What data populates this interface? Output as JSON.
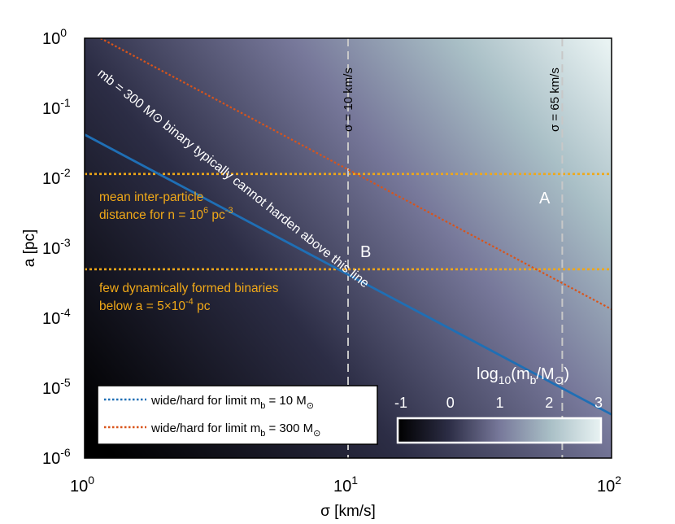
{
  "chart_data": {
    "type": "heatmap",
    "xlabel": "σ [km/s]",
    "ylabel": "a [pc]",
    "xscale": "log",
    "yscale": "log",
    "xlim": [
      1,
      100
    ],
    "ylim": [
      1e-06,
      1
    ],
    "x_ticks": [
      {
        "base": "10",
        "exp": "0"
      },
      {
        "base": "10",
        "exp": "1"
      },
      {
        "base": "10",
        "exp": "2"
      }
    ],
    "y_ticks": [
      {
        "base": "10",
        "exp": "-6"
      },
      {
        "base": "10",
        "exp": "-5"
      },
      {
        "base": "10",
        "exp": "-4"
      },
      {
        "base": "10",
        "exp": "-3"
      },
      {
        "base": "10",
        "exp": "-2"
      },
      {
        "base": "10",
        "exp": "-1"
      },
      {
        "base": "10",
        "exp": "0"
      }
    ],
    "colorbar": {
      "label": "log10(mb/M⊙)",
      "ticks": [
        "-1",
        "0",
        "1",
        "2",
        "3"
      ],
      "range": [
        -1,
        3
      ],
      "colors": [
        "#000000",
        "#2c2d45",
        "#77789a",
        "#a9bfc6",
        "#e9f3f3"
      ]
    },
    "series": [
      {
        "name": "wide/hard for limit m_b = 10 M⊙",
        "color": "#1f6fb5",
        "style": "dotted",
        "points": [
          [
            1,
            0.042
          ],
          [
            100,
            4.2e-06
          ]
        ]
      },
      {
        "name": "wide/hard for limit m_b = 300 M⊙",
        "color": "#d9541a",
        "style": "dotted",
        "points": [
          [
            1.15,
            1
          ],
          [
            100,
            0.000134
          ]
        ]
      }
    ],
    "horizontal_lines": [
      {
        "y": 0.0115,
        "color": "#f0a818"
      },
      {
        "y": 0.0005,
        "color": "#f0a818"
      }
    ],
    "vertical_lines": [
      {
        "x": 10,
        "label": "σ = 10 km/s",
        "color": "#c8c8c8"
      },
      {
        "x": 65,
        "label": "σ = 65 km/s",
        "color": "#c8c8c8"
      }
    ],
    "annotations": [
      {
        "text": "mb = 300 M⊙ binary typically cannot harden above this line",
        "color": "#ffffff"
      },
      {
        "line1": "mean inter-particle",
        "line2_prefix": "distance for n = 10",
        "line2_exp": "6",
        "line2_suffix": " pc",
        "line2_exp2": "-3",
        "color": "#f0a818"
      },
      {
        "line1": "few dynamically formed binaries",
        "line2_prefix": "below a = 5×10",
        "line2_exp": "-4",
        "line2_suffix": " pc",
        "color": "#f0a818"
      },
      {
        "text": "A",
        "color": "#ffffff"
      },
      {
        "text": "B",
        "color": "#ffffff"
      }
    ]
  }
}
